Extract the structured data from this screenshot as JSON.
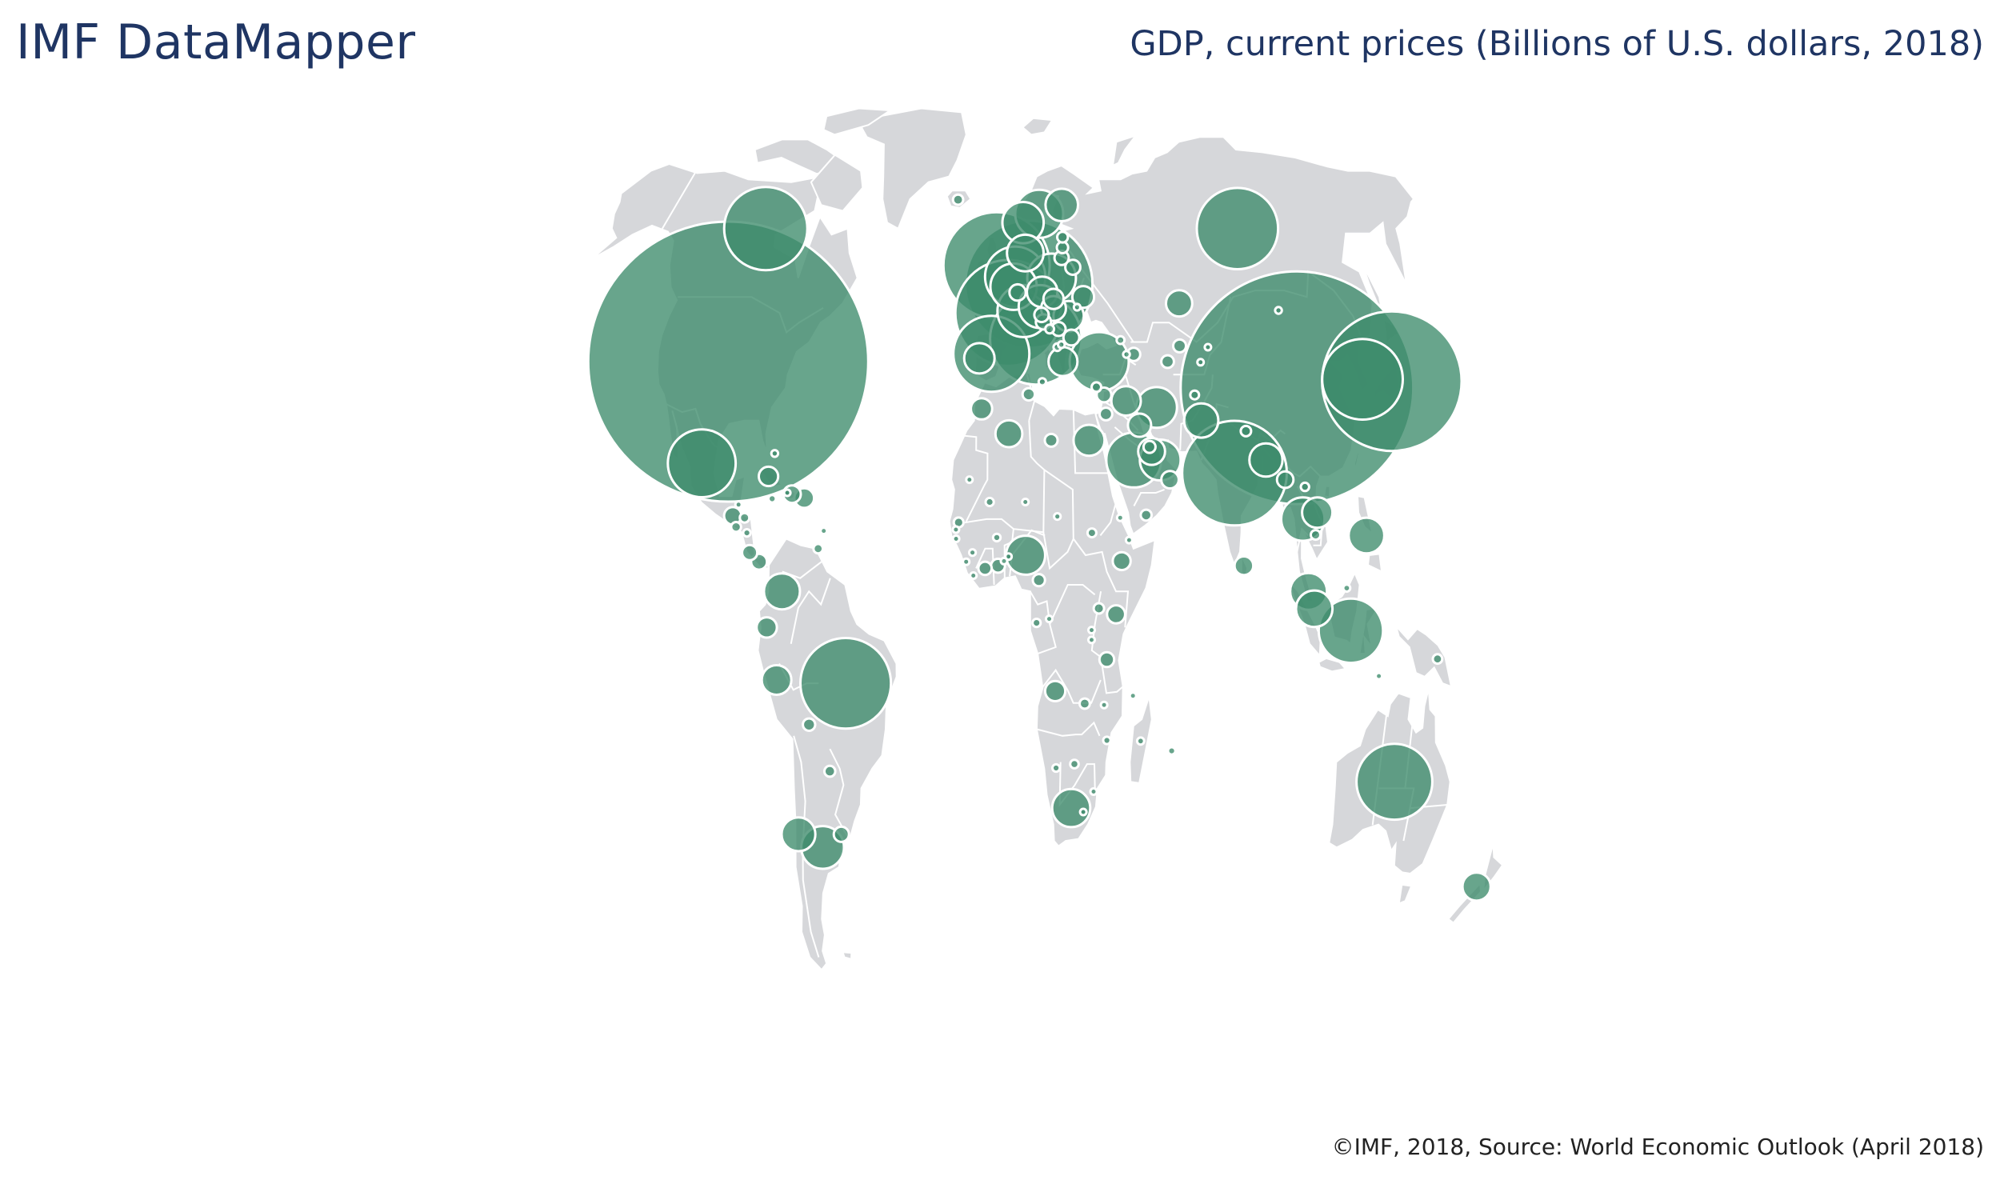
{
  "header": {
    "app_title": "IMF DataMapper",
    "map_title": "GDP, current prices (Billions of U.S. dollars, 2018)"
  },
  "footer": {
    "source": "©IMF, 2018, Source: World Economic Outlook (April 2018)"
  },
  "map": {
    "projection": "robinson-world",
    "land_color": "#d6d7da",
    "border_color": "#ffffff",
    "bubble_color": "#3d8c6c",
    "bubble_opacity": 0.78,
    "bubble_stroke": "#ffffff",
    "legend": "none",
    "bubbles": [
      {
        "country": "United States",
        "lon": -98,
        "lat": 39,
        "gdp": 20413
      },
      {
        "country": "China",
        "lon": 104,
        "lat": 35,
        "gdp": 14093
      },
      {
        "country": "Japan",
        "lon": 138,
        "lat": 36,
        "gdp": 5071
      },
      {
        "country": "Germany",
        "lon": 10.5,
        "lat": 51,
        "gdp": 4212
      },
      {
        "country": "United Kingdom",
        "lon": -2,
        "lat": 54,
        "gdp": 2936
      },
      {
        "country": "France",
        "lon": 2.5,
        "lat": 46.5,
        "gdp": 2925
      },
      {
        "country": "India",
        "lon": 79,
        "lat": 22,
        "gdp": 2848
      },
      {
        "country": "Italy",
        "lon": 12.5,
        "lat": 42.5,
        "gdp": 2182
      },
      {
        "country": "Brazil",
        "lon": -52,
        "lat": -10,
        "gdp": 2138
      },
      {
        "country": "Canada",
        "lon": -98,
        "lat": 60,
        "gdp": 1799
      },
      {
        "country": "Russia",
        "lon": 98,
        "lat": 60,
        "gdp": 1720
      },
      {
        "country": "Korea",
        "lon": 127.8,
        "lat": 36.3,
        "gdp": 1693
      },
      {
        "country": "Australia",
        "lon": 134,
        "lat": -25,
        "gdp": 1500
      },
      {
        "country": "Spain",
        "lon": -3.7,
        "lat": 40.2,
        "gdp": 1507
      },
      {
        "country": "Mexico",
        "lon": -102,
        "lat": 23.5,
        "gdp": 1199
      },
      {
        "country": "Indonesia",
        "lon": 116,
        "lat": -2,
        "gdp": 1075
      },
      {
        "country": "Netherlands",
        "lon": 5.3,
        "lat": 52.2,
        "gdp": 945
      },
      {
        "country": "Saudi Arabia",
        "lon": 45,
        "lat": 24,
        "gdp": 782
      },
      {
        "country": "Turkey",
        "lon": 35,
        "lat": 39,
        "gdp": 910
      },
      {
        "country": "Switzerland",
        "lon": 8.2,
        "lat": 46.8,
        "gdp": 707
      },
      {
        "country": "Argentina",
        "lon": -63,
        "lat": -35,
        "gdp": 475
      },
      {
        "country": "Sweden",
        "lon": 16,
        "lat": 62.5,
        "gdp": 601
      },
      {
        "country": "Poland",
        "lon": 19.4,
        "lat": 52,
        "gdp": 614
      },
      {
        "country": "Belgium",
        "lon": 4.6,
        "lat": 50.6,
        "gdp": 562
      },
      {
        "country": "Thailand",
        "lon": 101,
        "lat": 15,
        "gdp": 490
      },
      {
        "country": "Iran",
        "lon": 54,
        "lat": 32,
        "gdp": 430
      },
      {
        "country": "Austria",
        "lon": 14.5,
        "lat": 47.5,
        "gdp": 477
      },
      {
        "country": "Norway",
        "lon": 9,
        "lat": 61,
        "gdp": 443
      },
      {
        "country": "United Arab Emirates",
        "lon": 54,
        "lat": 24,
        "gdp": 432
      },
      {
        "country": "Nigeria",
        "lon": 8,
        "lat": 9.5,
        "gdp": 397
      },
      {
        "country": "South Africa",
        "lon": 24,
        "lat": -29,
        "gdp": 376
      },
      {
        "country": "Malaysia",
        "lon": 102,
        "lat": 4,
        "gdp": 354
      },
      {
        "country": "Philippines",
        "lon": 122,
        "lat": 12.5,
        "gdp": 331
      },
      {
        "country": "Colombia",
        "lon": -73,
        "lat": 4,
        "gdp": 336
      },
      {
        "country": "Denmark",
        "lon": 9.5,
        "lat": 56,
        "gdp": 350
      },
      {
        "country": "Singapore",
        "lon": 103.8,
        "lat": 1.35,
        "gdp": 347
      },
      {
        "country": "Pakistan",
        "lon": 69,
        "lat": 30,
        "gdp": 304
      },
      {
        "country": "Chile",
        "lon": -71,
        "lat": -33,
        "gdp": 298
      },
      {
        "country": "Finland",
        "lon": 26,
        "lat": 64,
        "gdp": 276
      },
      {
        "country": "Bangladesh",
        "lon": 90,
        "lat": 24,
        "gdp": 286
      },
      {
        "country": "Egypt",
        "lon": 30,
        "lat": 27,
        "gdp": 250
      },
      {
        "country": "Vietnam",
        "lon": 106,
        "lat": 16,
        "gdp": 241
      },
      {
        "country": "Portugal",
        "lon": -8,
        "lat": 39.5,
        "gdp": 241
      },
      {
        "country": "Czech Republic",
        "lon": 15.5,
        "lat": 49.8,
        "gdp": 242
      },
      {
        "country": "Romania",
        "lon": 25,
        "lat": 46,
        "gdp": 240
      },
      {
        "country": "Peru",
        "lon": -75,
        "lat": -9.5,
        "gdp": 228
      },
      {
        "country": "New Zealand",
        "lon": 172,
        "lat": -41,
        "gdp": 206
      },
      {
        "country": "Greece",
        "lon": 22,
        "lat": 39,
        "gdp": 218
      },
      {
        "country": "Iraq",
        "lon": 43.5,
        "lat": 33,
        "gdp": 226
      },
      {
        "country": "Algeria",
        "lon": 2.5,
        "lat": 28,
        "gdp": 188
      },
      {
        "country": "Qatar",
        "lon": 51.2,
        "lat": 25.3,
        "gdp": 188
      },
      {
        "country": "Kazakhstan",
        "lon": 67,
        "lat": 48,
        "gdp": 179
      },
      {
        "country": "Hungary",
        "lon": 19.5,
        "lat": 47.2,
        "gdp": 161
      },
      {
        "country": "Kuwait",
        "lon": 47.6,
        "lat": 29.3,
        "gdp": 141
      },
      {
        "country": "Morocco",
        "lon": -7,
        "lat": 31.8,
        "gdp": 118
      },
      {
        "country": "Ukraine",
        "lon": 31,
        "lat": 49,
        "gdp": 124
      },
      {
        "country": "Ecuador",
        "lon": -78,
        "lat": -1.5,
        "gdp": 107
      },
      {
        "country": "Puerto Rico",
        "lon": -66.5,
        "lat": 18.2,
        "gdp": 101
      },
      {
        "country": "Cuba",
        "lon": -79,
        "lat": 21.5,
        "gdp": 97
      },
      {
        "country": "Slovak Republic",
        "lon": 19.7,
        "lat": 48.7,
        "gdp": 106
      },
      {
        "country": "Sri Lanka",
        "lon": 80.7,
        "lat": 7.9,
        "gdp": 92
      },
      {
        "country": "Kenya",
        "lon": 38,
        "lat": 0.5,
        "gdp": 85
      },
      {
        "country": "Ethiopia",
        "lon": 40,
        "lat": 8.6,
        "gdp": 84
      },
      {
        "country": "Dominican Republic",
        "lon": -70.7,
        "lat": 18.8,
        "gdp": 81
      },
      {
        "country": "Guatemala",
        "lon": -90.2,
        "lat": 15.5,
        "gdp": 79
      },
      {
        "country": "Oman",
        "lon": 57,
        "lat": 21,
        "gdp": 79
      },
      {
        "country": "Myanmar",
        "lon": 96,
        "lat": 21,
        "gdp": 71
      },
      {
        "country": "Luxembourg",
        "lon": 6.1,
        "lat": 49.7,
        "gdp": 70
      },
      {
        "country": "Angola",
        "lon": 17.9,
        "lat": -11.2,
        "gdp": 106
      },
      {
        "country": "Uruguay",
        "lon": -56,
        "lat": -33,
        "gdp": 60
      },
      {
        "country": "Bulgaria",
        "lon": 25.5,
        "lat": 42.7,
        "gdp": 65
      },
      {
        "country": "Croatia",
        "lon": 15.5,
        "lat": 45.1,
        "gdp": 60
      },
      {
        "country": "Belarus",
        "lon": 28,
        "lat": 53.7,
        "gdp": 59
      },
      {
        "country": "Tanzania",
        "lon": 35,
        "lat": -6.4,
        "gdp": 56
      },
      {
        "country": "Lebanon",
        "lon": 35.9,
        "lat": 33.9,
        "gdp": 56
      },
      {
        "country": "Panama",
        "lon": -80.8,
        "lat": 8.5,
        "gdp": 65
      },
      {
        "country": "Costa Rica",
        "lon": -84,
        "lat": 9.9,
        "gdp": 60
      },
      {
        "country": "Lithuania",
        "lon": 23.9,
        "lat": 55.2,
        "gdp": 53
      },
      {
        "country": "Serbia",
        "lon": 21,
        "lat": 44,
        "gdp": 50
      },
      {
        "country": "Slovenia",
        "lon": 14.9,
        "lat": 46.2,
        "gdp": 54
      },
      {
        "country": "Ghana",
        "lon": -1.2,
        "lat": 7.9,
        "gdp": 51
      },
      {
        "country": "Turkmenistan",
        "lon": 59.5,
        "lat": 39,
        "gdp": 42
      },
      {
        "country": "Tunisia",
        "lon": 9.5,
        "lat": 34,
        "gdp": 40
      },
      {
        "country": "Jordan",
        "lon": 36.2,
        "lat": 31,
        "gdp": 42
      },
      {
        "country": "Bolivia",
        "lon": -64.7,
        "lat": -16.3,
        "gdp": 40
      },
      {
        "country": "Cote d'Ivoire",
        "lon": -5.5,
        "lat": 7.5,
        "gdp": 46
      },
      {
        "country": "Libya",
        "lon": 17,
        "lat": 27,
        "gdp": 43
      },
      {
        "country": "Bahrain",
        "lon": 50.6,
        "lat": 26,
        "gdp": 37
      },
      {
        "country": "Uzbekistan",
        "lon": 64.6,
        "lat": 41.4,
        "gdp": 43
      },
      {
        "country": "Cameroon",
        "lon": 12.4,
        "lat": 5.7,
        "gdp": 38
      },
      {
        "country": "Paraguay",
        "lon": -58.4,
        "lat": -23.4,
        "gdp": 31
      },
      {
        "country": "Uganda",
        "lon": 32.3,
        "lat": 1.4,
        "gdp": 28
      },
      {
        "country": "Latvia",
        "lon": 24.6,
        "lat": 56.9,
        "gdp": 34
      },
      {
        "country": "Estonia",
        "lon": 25,
        "lat": 58.6,
        "gdp": 30
      },
      {
        "country": "Nepal",
        "lon": 84.1,
        "lat": 28.4,
        "gdp": 28
      },
      {
        "country": "Yemen",
        "lon": 48.5,
        "lat": 15.6,
        "gdp": 31
      },
      {
        "country": "Iceland",
        "lon": -19,
        "lat": 64.9,
        "gdp": 27
      },
      {
        "country": "Zambia",
        "lon": 27.8,
        "lat": -13.1,
        "gdp": 27
      },
      {
        "country": "Cambodia",
        "lon": 105,
        "lat": 12.6,
        "gdp": 24
      },
      {
        "country": "Honduras",
        "lon": -86.2,
        "lat": 15.2,
        "gdp": 24
      },
      {
        "country": "Trinidad and Tobago",
        "lon": -61.2,
        "lat": 10.5,
        "gdp": 23
      },
      {
        "country": "Bosnia and Herzegovina",
        "lon": 17.7,
        "lat": 44,
        "gdp": 20
      },
      {
        "country": "Afghanistan",
        "lon": 67.7,
        "lat": 33.9,
        "gdp": 20
      },
      {
        "country": "Papua New Guinea",
        "lon": 145,
        "lat": -6.3,
        "gdp": 23
      },
      {
        "country": "Botswana",
        "lon": 24.7,
        "lat": -22.3,
        "gdp": 19
      },
      {
        "country": "Senegal",
        "lon": -14.4,
        "lat": 14.5,
        "gdp": 25
      },
      {
        "country": "Sudan",
        "lon": 30.2,
        "lat": 12.9,
        "gdp": 20
      },
      {
        "country": "Georgia",
        "lon": 43.4,
        "lat": 42.3,
        "gdp": 16
      },
      {
        "country": "Mali",
        "lon": -4,
        "lat": 17.6,
        "gdp": 17
      },
      {
        "country": "Gabon",
        "lon": 11.6,
        "lat": -0.8,
        "gdp": 17
      },
      {
        "country": "Jamaica",
        "lon": -77.3,
        "lat": 18.1,
        "gdp": 15
      },
      {
        "country": "Albania",
        "lon": 20.2,
        "lat": 41.2,
        "gdp": 15
      },
      {
        "country": "Mozambique",
        "lon": 35.5,
        "lat": -18.7,
        "gdp": 14
      },
      {
        "country": "Burkina Faso",
        "lon": -1.6,
        "lat": 12.2,
        "gdp": 15
      },
      {
        "country": "Mauritius",
        "lon": 57.5,
        "lat": -20.3,
        "gdp": 14
      },
      {
        "country": "Madagascar",
        "lon": 46.9,
        "lat": -18.8,
        "gdp": 13
      },
      {
        "country": "Namibia",
        "lon": 18.5,
        "lat": -22.9,
        "gdp": 14
      },
      {
        "country": "Armenia",
        "lon": 45,
        "lat": 40.1,
        "gdp": 12
      },
      {
        "country": "Chad",
        "lon": 18.7,
        "lat": 15.4,
        "gdp": 11
      },
      {
        "country": "Mongolia",
        "lon": 103.8,
        "lat": 46.9,
        "gdp": 12
      },
      {
        "country": "Benin",
        "lon": 2.3,
        "lat": 9.3,
        "gdp": 10
      },
      {
        "country": "Guinea",
        "lon": -9.7,
        "lat": 9.9,
        "gdp": 11
      },
      {
        "country": "Niger",
        "lon": 8,
        "lat": 17.6,
        "gdp": 9
      },
      {
        "country": "Rwanda",
        "lon": 29.9,
        "lat": -1.9,
        "gdp": 9
      },
      {
        "country": "Congo",
        "lon": 15.8,
        "lat": -0.2,
        "gdp": 9
      },
      {
        "country": "Malawi",
        "lon": 34.3,
        "lat": -13.3,
        "gdp": 7
      },
      {
        "country": "Mauritania",
        "lon": -10.9,
        "lat": 21,
        "gdp": 5
      },
      {
        "country": "Togo",
        "lon": 0.8,
        "lat": 8.6,
        "gdp": 5
      },
      {
        "country": "Sierra Leone",
        "lon": -11.8,
        "lat": 8.5,
        "gdp": 4
      },
      {
        "country": "Eswatini",
        "lon": 31.5,
        "lat": -26.5,
        "gdp": 5
      },
      {
        "country": "Burundi",
        "lon": 29.9,
        "lat": -3.4,
        "gdp": 3
      },
      {
        "country": "Lesotho",
        "lon": 28.2,
        "lat": -29.6,
        "gdp": 3
      },
      {
        "country": "Liberia",
        "lon": -9.4,
        "lat": 6.4,
        "gdp": 3
      },
      {
        "country": "Djibouti",
        "lon": 42.6,
        "lat": 11.8,
        "gdp": 2
      },
      {
        "country": "Eritrea",
        "lon": 39.8,
        "lat": 15.2,
        "gdp": 6
      },
      {
        "country": "Bahamas",
        "lon": -77.4,
        "lat": 25,
        "gdp": 12
      },
      {
        "country": "Barbados",
        "lon": -59.5,
        "lat": 13.2,
        "gdp": 5
      },
      {
        "country": "Comoros",
        "lon": 43.9,
        "lat": -11.9,
        "gdp": 1
      },
      {
        "country": "Gambia",
        "lon": -15.3,
        "lat": 13.4,
        "gdp": 2
      },
      {
        "country": "Guinea-Bissau",
        "lon": -15.2,
        "lat": 12,
        "gdp": 1
      },
      {
        "country": "Belize",
        "lon": -88.5,
        "lat": 17.2,
        "gdp": 2
      },
      {
        "country": "Haiti",
        "lon": -72.3,
        "lat": 19,
        "gdp": 9
      },
      {
        "country": "El Salvador",
        "lon": -88.9,
        "lat": 13.8,
        "gdp": 26
      },
      {
        "country": "Nicaragua",
        "lon": -85.2,
        "lat": 12.9,
        "gdp": 14
      },
      {
        "country": "Moldova",
        "lon": 28.4,
        "lat": 47.4,
        "gdp": 11
      },
      {
        "country": "North Macedonia",
        "lon": 21.7,
        "lat": 41.6,
        "gdp": 12
      },
      {
        "country": "Kyrgyz Republic",
        "lon": 74.8,
        "lat": 41.2,
        "gdp": 8
      },
      {
        "country": "Tajikistan",
        "lon": 71.3,
        "lat": 38.9,
        "gdp": 7
      },
      {
        "country": "Azerbaijan",
        "lon": 47.6,
        "lat": 40.1,
        "gdp": 45
      },
      {
        "country": "Lao P.D.R.",
        "lon": 102.5,
        "lat": 19.9,
        "gdp": 18
      },
      {
        "country": "Cyprus",
        "lon": 33.4,
        "lat": 35.1,
        "gdp": 24
      },
      {
        "country": "Malta",
        "lon": 14.4,
        "lat": 35.9,
        "gdp": 14
      },
      {
        "country": "Brunei",
        "lon": 114.7,
        "lat": 4.5,
        "gdp": 13
      },
      {
        "country": "Timor-Leste",
        "lon": 125.7,
        "lat": -8.9,
        "gdp": 3
      }
    ]
  }
}
